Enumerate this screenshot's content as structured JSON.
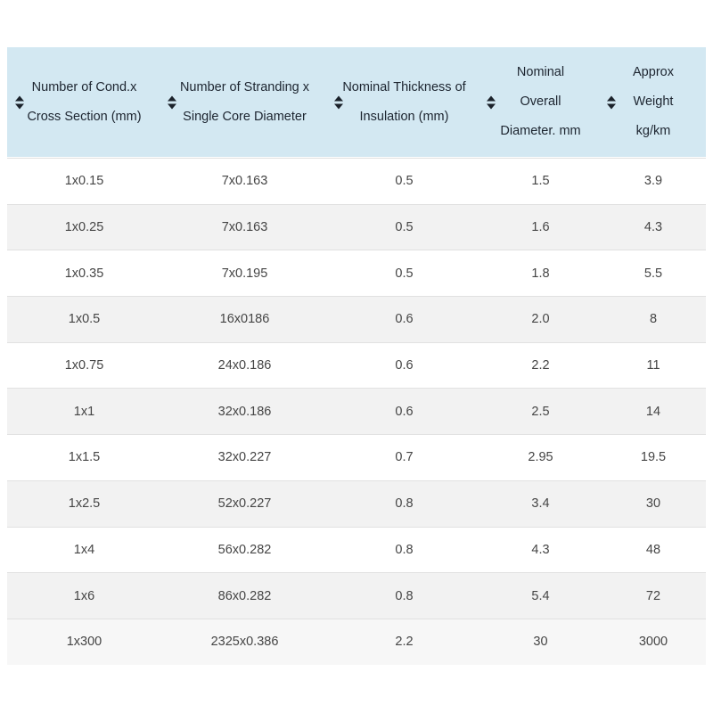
{
  "table": {
    "columns": [
      {
        "id": "cond-cross-section",
        "lines": [
          "Number of Cond.x",
          "Cross Section (mm)"
        ]
      },
      {
        "id": "stranding-core-diameter",
        "lines": [
          "Number of Stranding x",
          "Single Core Diameter"
        ]
      },
      {
        "id": "insulation-thickness",
        "lines": [
          "Nominal Thickness of",
          "Insulation (mm)"
        ]
      },
      {
        "id": "overall-diameter",
        "lines": [
          "Nominal",
          "Overall",
          "Diameter. mm"
        ]
      },
      {
        "id": "approx-weight",
        "lines": [
          "Approx",
          "Weight",
          "kg/km"
        ]
      }
    ],
    "rows": [
      [
        "1x0.15",
        "7x0.163",
        "0.5",
        "1.5",
        "3.9"
      ],
      [
        "1x0.25",
        "7x0.163",
        "0.5",
        "1.6",
        "4.3"
      ],
      [
        "1x0.35",
        "7x0.195",
        "0.5",
        "1.8",
        "5.5"
      ],
      [
        "1x0.5",
        "16x0186",
        "0.6",
        "2.0",
        "8"
      ],
      [
        "1x0.75",
        "24x0.186",
        "0.6",
        "2.2",
        "11"
      ],
      [
        "1x1",
        "32x0.186",
        "0.6",
        "2.5",
        "14"
      ],
      [
        "1x1.5",
        "32x0.227",
        "0.7",
        "2.95",
        "19.5"
      ],
      [
        "1x2.5",
        "52x0.227",
        "0.8",
        "3.4",
        "30"
      ],
      [
        "1x4",
        "56x0.282",
        "0.8",
        "4.3",
        "48"
      ],
      [
        "1x6",
        "86x0.282",
        "0.8",
        "5.4",
        "72"
      ],
      [
        "1x300",
        "2325x0.386",
        "2.2",
        "30",
        "3000"
      ]
    ]
  },
  "colors": {
    "header_bg": "#d3e8f2",
    "header_text": "#1d2530",
    "body_text": "#454545",
    "row_alt_bg": "#f2f2f2",
    "last_row_bg": "#f7f7f7",
    "row_border": "#e1e1e1",
    "sort_icon": "#1b222b"
  }
}
